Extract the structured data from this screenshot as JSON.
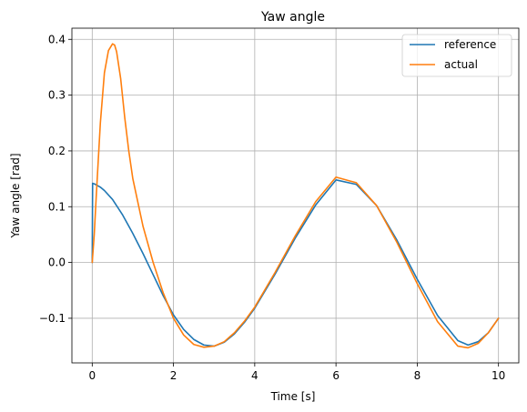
{
  "chart_data": {
    "type": "line",
    "title": "Yaw angle",
    "xlabel": "Time [s]",
    "ylabel": "Yaw angle [rad]",
    "xlim": [
      -0.5,
      10.5
    ],
    "ylim": [
      -0.18,
      0.42
    ],
    "xticks": [
      0,
      2,
      4,
      6,
      8,
      10
    ],
    "yticks": [
      -0.1,
      0.0,
      0.1,
      0.2,
      0.3,
      0.4
    ],
    "xtick_labels": [
      "0",
      "2",
      "4",
      "6",
      "8",
      "10"
    ],
    "ytick_labels": [
      "−0.1",
      "0.0",
      "0.1",
      "0.2",
      "0.3",
      "0.4"
    ],
    "grid": true,
    "legend_position": "top-right",
    "series": [
      {
        "name": "reference",
        "color": "#1f77b4",
        "x": [
          0.0,
          0.01,
          0.05,
          0.1,
          0.2,
          0.3,
          0.5,
          0.75,
          1.0,
          1.25,
          1.5,
          1.75,
          2.0,
          2.25,
          2.5,
          2.75,
          3.0,
          3.25,
          3.5,
          3.75,
          4.0,
          4.5,
          5.0,
          5.5,
          6.0,
          6.5,
          7.0,
          7.5,
          8.0,
          8.5,
          9.0,
          9.25,
          9.5,
          9.75,
          10.0
        ],
        "y": [
          0.0,
          0.142,
          0.141,
          0.139,
          0.135,
          0.129,
          0.113,
          0.085,
          0.052,
          0.016,
          -0.022,
          -0.06,
          -0.094,
          -0.12,
          -0.138,
          -0.148,
          -0.15,
          -0.143,
          -0.128,
          -0.107,
          -0.082,
          -0.021,
          0.044,
          0.103,
          0.148,
          0.14,
          0.102,
          0.04,
          -0.03,
          -0.095,
          -0.14,
          -0.148,
          -0.142,
          -0.126,
          -0.1
        ]
      },
      {
        "name": "actual",
        "color": "#ff7f0e",
        "x": [
          0.0,
          0.05,
          0.1,
          0.2,
          0.3,
          0.4,
          0.5,
          0.55,
          0.6,
          0.7,
          0.8,
          0.9,
          1.0,
          1.25,
          1.5,
          1.75,
          2.0,
          2.25,
          2.5,
          2.75,
          3.0,
          3.25,
          3.5,
          3.75,
          4.0,
          4.5,
          5.0,
          5.5,
          6.0,
          6.5,
          7.0,
          7.5,
          8.0,
          8.5,
          9.0,
          9.25,
          9.5,
          9.75,
          10.0
        ],
        "y": [
          0.0,
          0.05,
          0.12,
          0.25,
          0.34,
          0.38,
          0.392,
          0.39,
          0.378,
          0.33,
          0.26,
          0.2,
          0.15,
          0.065,
          0.0,
          -0.055,
          -0.1,
          -0.13,
          -0.147,
          -0.152,
          -0.15,
          -0.142,
          -0.126,
          -0.105,
          -0.08,
          -0.018,
          0.048,
          0.109,
          0.153,
          0.143,
          0.102,
          0.036,
          -0.038,
          -0.106,
          -0.15,
          -0.153,
          -0.145,
          -0.126,
          -0.1
        ]
      }
    ]
  }
}
